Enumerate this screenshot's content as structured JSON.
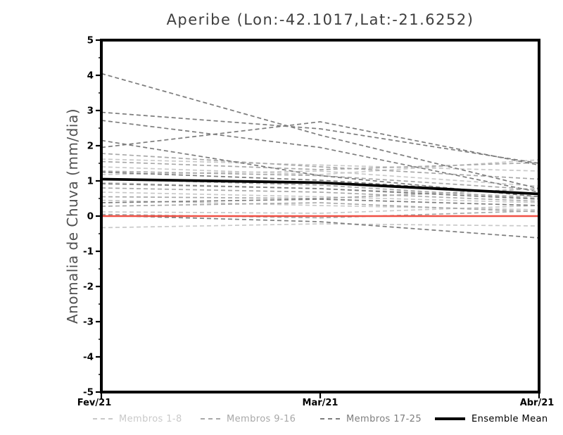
{
  "chart_data": {
    "type": "line",
    "title": "Aperibe (Lon:-42.1017,Lat:-21.6252)",
    "xlabel": "",
    "ylabel": "Anomalia de Chuva (mm/dia)",
    "x_categories": [
      "Fev/21",
      "Mar/21",
      "Abr/21"
    ],
    "ylim": [
      -5,
      5
    ],
    "y_major_tick_step": 1,
    "y_minor_tick_step": 0.5,
    "y_major_ticks": [
      -5,
      -4,
      -3,
      -2,
      -1,
      0,
      1,
      2,
      3,
      4,
      5
    ],
    "grid": false,
    "legend_position": "bottom",
    "line_style_members": "dashed",
    "series": [
      {
        "name": "Membros 1-8",
        "color": "#c9c9c9",
        "style": "dashed",
        "members": [
          [
            1.62,
            1.45,
            1.28
          ],
          [
            1.4,
            1.18,
            1.6
          ],
          [
            1.18,
            1.28,
            0.85
          ],
          [
            0.95,
            0.78,
            0.55
          ],
          [
            0.68,
            0.55,
            0.38
          ],
          [
            0.45,
            0.3,
            0.18
          ],
          [
            0.12,
            0.08,
            0.3
          ],
          [
            -0.33,
            -0.22,
            -0.28
          ]
        ]
      },
      {
        "name": "Membros 9-16",
        "color": "#a8a8a8",
        "style": "dashed",
        "members": [
          [
            1.78,
            1.4,
            1.05
          ],
          [
            1.55,
            1.32,
            1.52
          ],
          [
            1.28,
            1.15,
            0.75
          ],
          [
            1.05,
            0.88,
            0.5
          ],
          [
            0.8,
            0.68,
            0.42
          ],
          [
            0.55,
            0.5,
            0.78
          ],
          [
            0.28,
            0.38,
            0.12
          ],
          [
            0.05,
            -0.05,
            0.15
          ]
        ]
      },
      {
        "name": "Membros 17-25",
        "color": "#7d7d7d",
        "style": "dashed",
        "members": [
          [
            4.05,
            2.3,
            0.78
          ],
          [
            2.95,
            2.48,
            1.5
          ],
          [
            2.72,
            1.95,
            0.68
          ],
          [
            1.95,
            2.68,
            1.45
          ],
          [
            2.15,
            1.15,
            0.55
          ],
          [
            1.25,
            1.02,
            0.62
          ],
          [
            0.92,
            0.78,
            0.48
          ],
          [
            0.38,
            0.48,
            0.3
          ],
          [
            0.02,
            -0.16,
            -0.62
          ]
        ]
      }
    ],
    "ensemble_mean": {
      "name": "Ensemble Mean",
      "color": "#000000",
      "style": "solid",
      "values": [
        1.05,
        0.95,
        0.63
      ]
    },
    "zero_line": {
      "color": "#f05045",
      "values": [
        0,
        0,
        0
      ]
    }
  }
}
